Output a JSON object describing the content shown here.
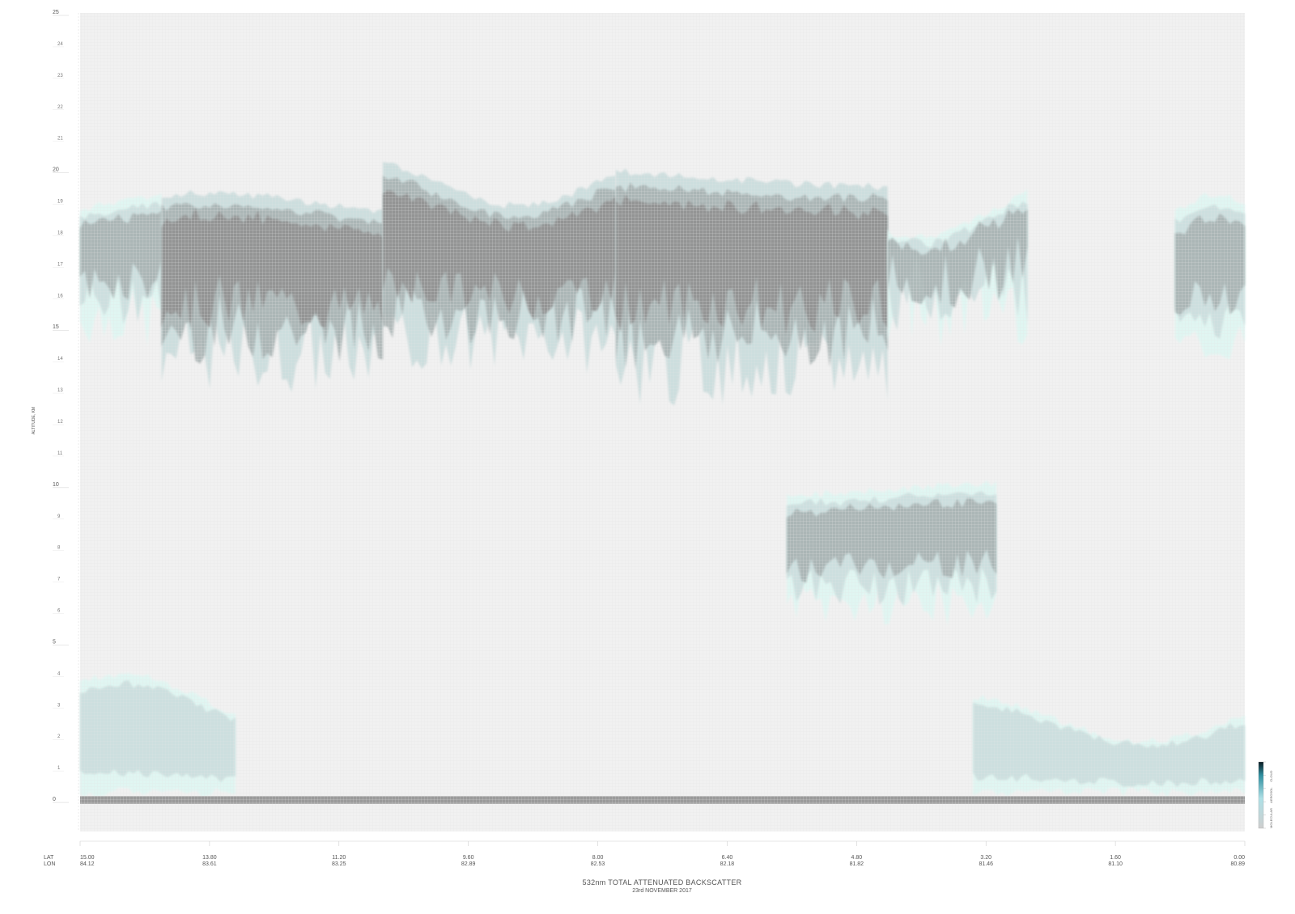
{
  "chart_data": {
    "type": "heatmap",
    "title": "532nm TOTAL ATTENUATED BACKSCATTER",
    "subtitle": "23rd NOVEMBER 2017",
    "ylabel": "ALTITUDE, KM",
    "ylim": [
      -1,
      25
    ],
    "y_ticks_major": [
      0,
      5,
      10,
      15,
      20,
      25
    ],
    "y_ticks_minor": [
      1,
      2,
      3,
      4,
      6,
      7,
      8,
      9,
      11,
      12,
      13,
      14,
      16,
      17,
      18,
      19,
      21,
      22,
      23,
      24
    ],
    "x_row_labels": [
      "LAT",
      "LON"
    ],
    "x_ticks": [
      {
        "lat": "15.00",
        "lon": "84.12"
      },
      {
        "lat": "13.80",
        "lon": "83.61"
      },
      {
        "lat": "11.20",
        "lon": "83.25"
      },
      {
        "lat": "9.60",
        "lon": "82.89"
      },
      {
        "lat": "8.00",
        "lon": "82.53"
      },
      {
        "lat": "6.40",
        "lon": "82.18"
      },
      {
        "lat": "4.80",
        "lon": "81.82"
      },
      {
        "lat": "3.20",
        "lon": "81.46"
      },
      {
        "lat": "1.60",
        "lon": "81.10"
      },
      {
        "lat": "0.00",
        "lon": "80.89"
      }
    ],
    "grid": true,
    "legend": {
      "placement": "bottom-right",
      "labels": [
        "MOLECULAR",
        "AEROSOL",
        "CLOUD"
      ],
      "colors": [
        "#cfcfcf",
        "#aee0e6",
        "#2e8fa0",
        "#0a1a22"
      ]
    },
    "colors": {
      "background": "#f1f1f1",
      "aerosol": "#dff7f3",
      "cloud_light": "#c9dcdc",
      "cloud_mid": "#a6b0b0",
      "cloud_dense": "#8f8f8f",
      "surface": "#9a9a9a"
    },
    "regions": [
      {
        "kind": "cloud",
        "name": "cirrus-deck-west",
        "x": [
          15.0,
          13.95
        ],
        "ytop": [
          18.4,
          19.3
        ],
        "ybottom": [
          14.2,
          16.2
        ],
        "density": "mid"
      },
      {
        "kind": "cloud",
        "name": "cirrus-deck-central-west",
        "x": [
          13.95,
          11.1
        ],
        "ytop": [
          18.8,
          19.4
        ],
        "ybottom": [
          12.8,
          15.2
        ],
        "density": "dense"
      },
      {
        "kind": "cloud",
        "name": "cirrus-deck-central",
        "x": [
          11.1,
          8.1
        ],
        "ytop": [
          19.0,
          20.4
        ],
        "ybottom": [
          13.5,
          15.5
        ],
        "density": "dense"
      },
      {
        "kind": "cloud",
        "name": "cirrus-deck-east",
        "x": [
          8.1,
          4.6
        ],
        "ytop": [
          19.6,
          20.5
        ],
        "ybottom": [
          12.4,
          15.0
        ],
        "density": "dense"
      },
      {
        "kind": "cloud",
        "name": "cirrus-deck-far-east",
        "x": [
          4.6,
          2.8
        ],
        "ytop": [
          18.0,
          19.6
        ],
        "ybottom": [
          14.2,
          17.0
        ],
        "density": "light"
      },
      {
        "kind": "cloud",
        "name": "cirrus-patch-right",
        "x": [
          0.9,
          0.0
        ],
        "ytop": [
          18.8,
          19.4
        ],
        "ybottom": [
          13.6,
          15.0
        ],
        "density": "mid"
      },
      {
        "kind": "cloud",
        "name": "mid-level-cloud-streaks",
        "x": [
          5.9,
          3.2
        ],
        "ytop": [
          9.5,
          10.2
        ],
        "ybottom": [
          5.4,
          6.8
        ],
        "density": "mid"
      },
      {
        "kind": "aerosol",
        "name": "boundary-layer-west",
        "x": [
          15.0,
          13.0
        ],
        "ytop": [
          2.6,
          4.1
        ],
        "ybottom": [
          0.1,
          0.1
        ],
        "density": "light"
      },
      {
        "kind": "aerosol",
        "name": "boundary-layer-east",
        "x": [
          3.5,
          0.0
        ],
        "ytop": [
          2.0,
          3.4
        ],
        "ybottom": [
          0.1,
          0.1
        ],
        "density": "light"
      }
    ]
  }
}
